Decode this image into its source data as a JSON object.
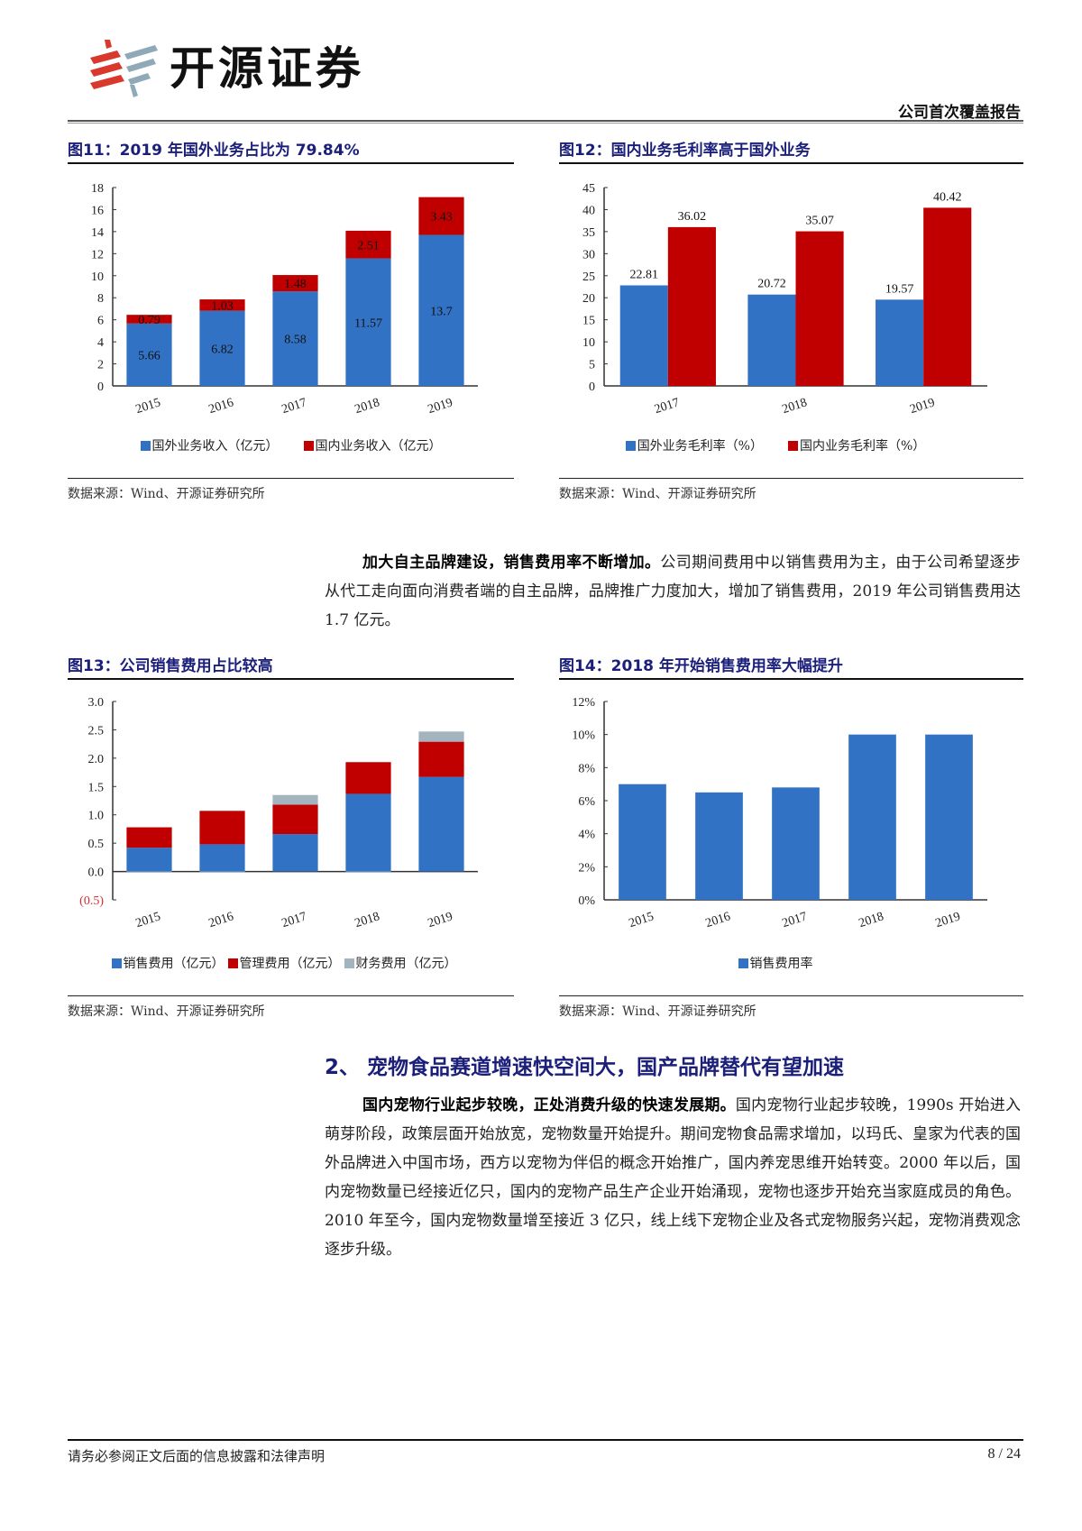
{
  "header": {
    "brand_name": "开源证券",
    "report_type": "公司首次覆盖报告",
    "logo_colors": {
      "red": "#d9382c",
      "gray_blue": "#8fa9b8"
    }
  },
  "colors": {
    "blue": "#3272c4",
    "red": "#c00000",
    "gray": "#a3b4bf",
    "title_navy": "#1b1f7a"
  },
  "figures": [
    {
      "title": "图11：2019 年国外业务占比为 79.84%",
      "source": "数据来源：Wind、开源证券研究所",
      "legend": [
        "国外业务收入（亿元）",
        "国内业务收入（亿元）"
      ]
    },
    {
      "title": "图12：国内业务毛利率高于国外业务",
      "source": "数据来源：Wind、开源证券研究所",
      "legend": [
        "国外业务毛利率（%）",
        "国内业务毛利率（%）"
      ]
    },
    {
      "title": "图13：公司销售费用占比较高",
      "source": "数据来源：Wind、开源证券研究所",
      "legend": [
        "销售费用（亿元）",
        "管理费用（亿元）",
        "财务费用（亿元）"
      ]
    },
    {
      "title": "图14：2018 年开始销售费用率大幅提升",
      "source": "数据来源：Wind、开源证券研究所",
      "legend": [
        "销售费用率"
      ]
    }
  ],
  "chart_data": [
    {
      "type": "bar",
      "stacked": true,
      "title": "图11：2019 年国外业务占比为 79.84%",
      "categories": [
        "2015",
        "2016",
        "2017",
        "2018",
        "2019"
      ],
      "series": [
        {
          "name": "国外业务收入（亿元）",
          "color": "#3272c4",
          "values": [
            5.66,
            6.82,
            8.58,
            11.57,
            13.7
          ]
        },
        {
          "name": "国内业务收入（亿元）",
          "color": "#c00000",
          "values": [
            0.79,
            1.03,
            1.48,
            2.51,
            3.43
          ]
        }
      ],
      "data_labels": true,
      "yticks": [
        0,
        2,
        4,
        6,
        8,
        10,
        12,
        14,
        16,
        18
      ],
      "ylim": [
        0,
        18
      ],
      "xlabel": "",
      "ylabel": "",
      "grid": false,
      "legend_position": "bottom"
    },
    {
      "type": "bar",
      "stacked": false,
      "title": "图12：国内业务毛利率高于国外业务",
      "categories": [
        "2017",
        "2018",
        "2019"
      ],
      "series": [
        {
          "name": "国外业务毛利率（%）",
          "color": "#3272c4",
          "values": [
            22.81,
            20.72,
            19.57
          ]
        },
        {
          "name": "国内业务毛利率（%）",
          "color": "#c00000",
          "values": [
            36.02,
            35.07,
            40.42
          ]
        }
      ],
      "data_labels": true,
      "yticks": [
        0,
        5,
        10,
        15,
        20,
        25,
        30,
        35,
        40,
        45
      ],
      "ylim": [
        0,
        45
      ],
      "xlabel": "",
      "ylabel": "",
      "grid": false,
      "legend_position": "bottom"
    },
    {
      "type": "bar",
      "stacked": true,
      "title": "图13：公司销售费用占比较高",
      "categories": [
        "2015",
        "2016",
        "2017",
        "2018",
        "2019"
      ],
      "series": [
        {
          "name": "销售费用（亿元）",
          "color": "#3272c4",
          "values": [
            0.42,
            0.48,
            0.66,
            1.37,
            1.67
          ]
        },
        {
          "name": "管理费用（亿元）",
          "color": "#c00000",
          "values": [
            0.36,
            0.59,
            0.52,
            0.56,
            0.62
          ]
        },
        {
          "name": "财务费用（亿元）",
          "color": "#a3b4bf",
          "values": [
            -0.02,
            -0.02,
            0.17,
            -0.02,
            0.18
          ]
        }
      ],
      "data_labels": false,
      "yticks": [
        "(0.5)",
        "0.0",
        "0.5",
        "1.0",
        "1.5",
        "2.0",
        "2.5",
        "3.0"
      ],
      "ylim": [
        -0.5,
        3.0
      ],
      "xlabel": "",
      "ylabel": "",
      "grid": false,
      "legend_position": "bottom"
    },
    {
      "type": "bar",
      "stacked": false,
      "title": "图14：2018 年开始销售费用率大幅提升",
      "categories": [
        "2015",
        "2016",
        "2017",
        "2018",
        "2019"
      ],
      "series": [
        {
          "name": "销售费用率",
          "color": "#3272c4",
          "values": [
            7.0,
            6.5,
            6.8,
            10.0,
            10.0
          ]
        }
      ],
      "data_labels": false,
      "yticks": [
        "0%",
        "2%",
        "4%",
        "6%",
        "8%",
        "10%",
        "12%"
      ],
      "ylim": [
        0,
        12
      ],
      "xlabel": "",
      "ylabel": "",
      "grid": false,
      "legend_position": "bottom"
    }
  ],
  "paragraph1": {
    "lead": "加大自主品牌建设，销售费用率不断增加。",
    "body": "公司期间费用中以销售费用为主，由于公司希望逐步从代工走向面向消费者端的自主品牌，品牌推广力度加大，增加了销售费用，2019 年公司销售费用达 1.7 亿元。"
  },
  "section": {
    "heading": "2、 宠物食品赛道增速快空间大，国产品牌替代有望加速"
  },
  "paragraph2": {
    "lead": "国内宠物行业起步较晚，正处消费升级的快速发展期。",
    "body": "国内宠物行业起步较晚，1990s 开始进入萌芽阶段，政策层面开始放宽，宠物数量开始提升。期间宠物食品需求增加，以玛氏、皇家为代表的国外品牌进入中国市场，西方以宠物为伴侣的概念开始推广，国内养宠思维开始转变。2000 年以后，国内宠物数量已经接近亿只，国内的宠物产品生产企业开始涌现，宠物也逐步开始充当家庭成员的角色。2010 年至今，国内宠物数量增至接近 3 亿只，线上线下宠物企业及各式宠物服务兴起，宠物消费观念逐步升级。"
  },
  "footer": {
    "disclaimer": "请务必参阅正文后面的信息披露和法律声明",
    "page": "8 / 24"
  }
}
